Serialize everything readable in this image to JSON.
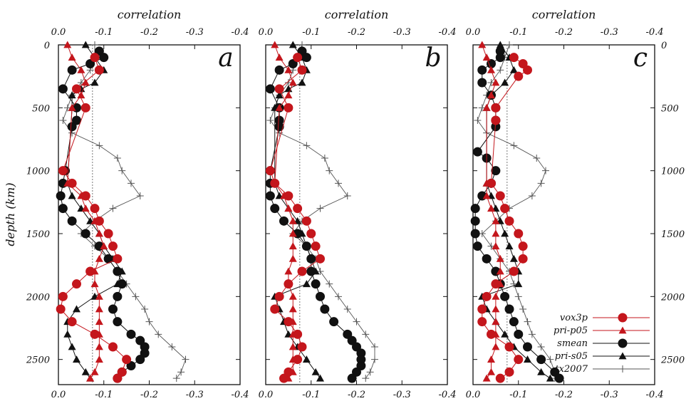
{
  "figure": {
    "top_axis_label": "correlation",
    "y_axis_label": "depth (km)",
    "x_tick_labels": [
      "0",
      "0.0",
      "-0.1",
      "-0.2",
      "-0.3",
      "-0.4"
    ],
    "y_tick_labels": [
      "0",
      "500",
      "1000",
      "1500",
      "2000",
      "2500"
    ],
    "legend": [
      {
        "label": "vox3p",
        "color": "#c4161c",
        "marker": "circle"
      },
      {
        "label": "pri-p05",
        "color": "#c4161c",
        "marker": "triangle"
      },
      {
        "label": "smean",
        "color": "#111111",
        "marker": "circle"
      },
      {
        "label": "pri-s05",
        "color": "#111111",
        "marker": "triangle"
      },
      {
        "label": "tx2007",
        "color": "#555555",
        "marker": "plus"
      }
    ]
  },
  "chart_data": [
    {
      "type": "line",
      "panel": "a",
      "x_label": "correlation",
      "y_label": "depth (km)",
      "xlim": [
        0.0,
        -0.4
      ],
      "ylim": [
        0,
        2700
      ],
      "reference_line_x": -0.075,
      "series": [
        {
          "name": "vox3p",
          "depth": [
            100,
            200,
            350,
            500,
            1000,
            1100,
            1200,
            1300,
            1400,
            1500,
            1600,
            1700,
            1800,
            1900,
            2000,
            2100,
            2200,
            2300,
            2400,
            2500,
            2600,
            2650
          ],
          "value": [
            -0.08,
            -0.09,
            -0.04,
            -0.06,
            -0.01,
            -0.03,
            -0.06,
            -0.08,
            -0.09,
            -0.11,
            -0.12,
            -0.13,
            -0.07,
            -0.04,
            -0.01,
            -0.005,
            -0.03,
            -0.08,
            -0.12,
            -0.15,
            -0.14,
            -0.13
          ]
        },
        {
          "name": "pri-p05",
          "depth": [
            0,
            100,
            200,
            300,
            400,
            500,
            1100,
            1200,
            1300,
            1400,
            1500,
            1600,
            1700,
            1800,
            1900,
            2000,
            2100,
            2200,
            2300,
            2400,
            2500,
            2600,
            2650
          ],
          "value": [
            -0.02,
            -0.03,
            -0.05,
            -0.06,
            -0.05,
            -0.03,
            -0.02,
            -0.05,
            -0.06,
            -0.08,
            -0.09,
            -0.1,
            -0.09,
            -0.08,
            -0.08,
            -0.09,
            -0.09,
            -0.09,
            -0.09,
            -0.09,
            -0.09,
            -0.08,
            -0.07
          ]
        },
        {
          "name": "smean",
          "depth": [
            50,
            100,
            150,
            200,
            350,
            500,
            600,
            650,
            1000,
            1100,
            1200,
            1300,
            1400,
            1500,
            1600,
            1700,
            1800,
            1900,
            2000,
            2100,
            2200,
            2300,
            2350,
            2400,
            2450,
            2500,
            2550,
            2600,
            2650
          ],
          "value": [
            -0.09,
            -0.1,
            -0.07,
            -0.03,
            -0.01,
            -0.04,
            -0.04,
            -0.03,
            -0.015,
            -0.01,
            -0.005,
            -0.01,
            -0.03,
            -0.06,
            -0.09,
            -0.11,
            -0.13,
            -0.14,
            -0.13,
            -0.12,
            -0.13,
            -0.16,
            -0.18,
            -0.19,
            -0.19,
            -0.18,
            -0.16,
            -0.14,
            -0.13
          ]
        },
        {
          "name": "pri-s05",
          "depth": [
            0,
            100,
            200,
            300,
            350,
            400,
            500,
            1100,
            1200,
            1300,
            1400,
            1500,
            1600,
            1700,
            1800,
            1900,
            2000,
            2100,
            2200,
            2300,
            2400,
            2500,
            2600,
            2650
          ],
          "value": [
            -0.06,
            -0.08,
            -0.1,
            -0.08,
            -0.05,
            -0.03,
            -0.03,
            -0.02,
            -0.03,
            -0.05,
            -0.07,
            -0.09,
            -0.1,
            -0.12,
            -0.14,
            -0.13,
            -0.08,
            -0.04,
            -0.02,
            -0.02,
            -0.03,
            -0.04,
            -0.06,
            -0.07
          ]
        },
        {
          "name": "tx2007",
          "depth": [
            0,
            100,
            200,
            300,
            400,
            500,
            600,
            700,
            800,
            900,
            1000,
            1100,
            1200,
            1300,
            1400,
            1500,
            1600,
            1700,
            1800,
            1900,
            2000,
            2100,
            2200,
            2300,
            2400,
            2500,
            2600,
            2650
          ],
          "value": [
            -0.08,
            -0.08,
            -0.07,
            -0.05,
            -0.03,
            -0.02,
            -0.01,
            -0.03,
            -0.09,
            -0.13,
            -0.14,
            -0.16,
            -0.18,
            -0.12,
            -0.08,
            -0.05,
            -0.08,
            -0.11,
            -0.13,
            -0.15,
            -0.17,
            -0.19,
            -0.2,
            -0.22,
            -0.25,
            -0.28,
            -0.27,
            -0.26
          ]
        }
      ]
    },
    {
      "type": "line",
      "panel": "b",
      "x_label": "correlation",
      "y_label": "depth (km)",
      "xlim": [
        0.0,
        -0.4
      ],
      "ylim": [
        0,
        2700
      ],
      "reference_line_x": -0.075,
      "series": [
        {
          "name": "vox3p",
          "depth": [
            100,
            200,
            350,
            500,
            1000,
            1100,
            1200,
            1300,
            1400,
            1500,
            1600,
            1700,
            1800,
            1900,
            2000,
            2100,
            2200,
            2300,
            2400,
            2500,
            2600,
            2650
          ],
          "value": [
            -0.07,
            -0.08,
            -0.03,
            -0.05,
            -0.01,
            -0.02,
            -0.05,
            -0.07,
            -0.09,
            -0.1,
            -0.11,
            -0.12,
            -0.08,
            -0.05,
            -0.03,
            -0.02,
            -0.05,
            -0.07,
            -0.08,
            -0.07,
            -0.05,
            -0.04
          ]
        },
        {
          "name": "pri-p05",
          "depth": [
            0,
            100,
            200,
            300,
            400,
            500,
            1100,
            1200,
            1300,
            1400,
            1500,
            1600,
            1700,
            1800,
            1900,
            2000,
            2100,
            2200,
            2300,
            2400,
            2500,
            2600,
            2650
          ],
          "value": [
            -0.02,
            -0.03,
            -0.05,
            -0.06,
            -0.05,
            -0.03,
            -0.02,
            -0.04,
            -0.05,
            -0.06,
            -0.06,
            -0.06,
            -0.06,
            -0.05,
            -0.05,
            -0.06,
            -0.06,
            -0.06,
            -0.06,
            -0.06,
            -0.06,
            -0.06,
            -0.05
          ]
        },
        {
          "name": "smean",
          "depth": [
            50,
            100,
            150,
            200,
            350,
            500,
            600,
            650,
            1000,
            1100,
            1200,
            1300,
            1400,
            1500,
            1600,
            1700,
            1800,
            1900,
            2000,
            2100,
            2200,
            2300,
            2350,
            2400,
            2450,
            2500,
            2550,
            2600,
            2650
          ],
          "value": [
            -0.08,
            -0.09,
            -0.06,
            -0.03,
            -0.01,
            -0.03,
            -0.03,
            -0.03,
            -0.01,
            -0.01,
            -0.01,
            -0.02,
            -0.04,
            -0.07,
            -0.09,
            -0.1,
            -0.1,
            -0.11,
            -0.12,
            -0.13,
            -0.15,
            -0.18,
            -0.19,
            -0.2,
            -0.21,
            -0.21,
            -0.21,
            -0.2,
            -0.19
          ]
        },
        {
          "name": "pri-s05",
          "depth": [
            0,
            100,
            200,
            300,
            350,
            400,
            500,
            1100,
            1200,
            1300,
            1400,
            1500,
            1600,
            1700,
            1800,
            1900,
            2000,
            2100,
            2200,
            2300,
            2400,
            2500,
            2600,
            2650
          ],
          "value": [
            -0.06,
            -0.08,
            -0.09,
            -0.08,
            -0.05,
            -0.03,
            -0.02,
            -0.02,
            -0.03,
            -0.05,
            -0.07,
            -0.08,
            -0.09,
            -0.1,
            -0.11,
            -0.09,
            -0.02,
            -0.03,
            -0.04,
            -0.05,
            -0.07,
            -0.09,
            -0.11,
            -0.12
          ]
        },
        {
          "name": "tx2007",
          "depth": [
            0,
            100,
            200,
            300,
            400,
            500,
            600,
            700,
            800,
            900,
            1000,
            1100,
            1200,
            1300,
            1400,
            1500,
            1600,
            1700,
            1800,
            1900,
            2000,
            2100,
            2200,
            2300,
            2400,
            2500,
            2600,
            2650
          ],
          "value": [
            -0.08,
            -0.07,
            -0.06,
            -0.05,
            -0.03,
            -0.02,
            -0.01,
            -0.03,
            -0.09,
            -0.13,
            -0.14,
            -0.16,
            -0.18,
            -0.12,
            -0.08,
            -0.06,
            -0.09,
            -0.11,
            -0.12,
            -0.14,
            -0.16,
            -0.18,
            -0.2,
            -0.22,
            -0.24,
            -0.24,
            -0.23,
            -0.22
          ]
        }
      ]
    },
    {
      "type": "line",
      "panel": "c",
      "x_label": "correlation",
      "y_label": "depth (km)",
      "xlim": [
        0.0,
        -0.4
      ],
      "ylim": [
        0,
        2700
      ],
      "reference_line_x": -0.075,
      "series": [
        {
          "name": "vox3p",
          "depth": [
            100,
            150,
            200,
            250,
            500,
            600,
            1100,
            1200,
            1300,
            1400,
            1500,
            1600,
            1700,
            1800,
            1900,
            2000,
            2100,
            2200,
            2300,
            2400,
            2500,
            2600,
            2650
          ],
          "value": [
            -0.09,
            -0.11,
            -0.12,
            -0.1,
            -0.05,
            -0.05,
            -0.04,
            -0.06,
            -0.07,
            -0.08,
            -0.1,
            -0.11,
            -0.11,
            -0.09,
            -0.05,
            -0.03,
            -0.02,
            -0.02,
            -0.04,
            -0.08,
            -0.1,
            -0.08,
            -0.06
          ]
        },
        {
          "name": "pri-p05",
          "depth": [
            0,
            100,
            200,
            300,
            400,
            500,
            1100,
            1200,
            1300,
            1400,
            1500,
            1600,
            1700,
            1800,
            1900,
            2000,
            2100,
            2200,
            2300,
            2400,
            2500,
            2600,
            2650
          ],
          "value": [
            -0.02,
            -0.03,
            -0.04,
            -0.05,
            -0.04,
            -0.03,
            -0.03,
            -0.03,
            -0.04,
            -0.05,
            -0.05,
            -0.05,
            -0.06,
            -0.06,
            -0.06,
            -0.05,
            -0.05,
            -0.05,
            -0.05,
            -0.05,
            -0.04,
            -0.04,
            -0.03
          ]
        },
        {
          "name": "smean",
          "depth": [
            50,
            100,
            150,
            200,
            300,
            400,
            500,
            600,
            650,
            850,
            900,
            1000,
            1100,
            1200,
            1300,
            1400,
            1500,
            1600,
            1700,
            1800,
            1900,
            2000,
            2100,
            2200,
            2300,
            2400,
            2500,
            2600,
            2650
          ],
          "value": [
            -0.06,
            -0.06,
            -0.04,
            -0.02,
            -0.02,
            -0.04,
            -0.05,
            -0.05,
            -0.05,
            -0.01,
            -0.03,
            -0.05,
            -0.04,
            -0.02,
            -0.005,
            -0.005,
            -0.005,
            -0.01,
            -0.03,
            -0.05,
            -0.06,
            -0.07,
            -0.08,
            -0.09,
            -0.1,
            -0.12,
            -0.15,
            -0.18,
            -0.19
          ]
        },
        {
          "name": "pri-s05",
          "depth": [
            0,
            100,
            200,
            300,
            400,
            500,
            1100,
            1200,
            1300,
            1400,
            1500,
            1600,
            1700,
            1800,
            1900,
            2000,
            2100,
            2200,
            2300,
            2400,
            2500,
            2600,
            2650
          ],
          "value": [
            -0.06,
            -0.08,
            -0.09,
            -0.07,
            -0.04,
            -0.03,
            -0.03,
            -0.04,
            -0.05,
            -0.06,
            -0.07,
            -0.08,
            -0.09,
            -0.1,
            -0.1,
            -0.02,
            -0.03,
            -0.05,
            -0.07,
            -0.09,
            -0.12,
            -0.15,
            -0.17
          ]
        },
        {
          "name": "tx2007",
          "depth": [
            0,
            100,
            200,
            300,
            400,
            500,
            600,
            700,
            800,
            900,
            1000,
            1100,
            1200,
            1300,
            1400,
            1500,
            1600,
            1700,
            1800,
            1900,
            2000,
            2100,
            2200,
            2300,
            2400,
            2500,
            2600,
            2650
          ],
          "value": [
            -0.08,
            -0.07,
            -0.06,
            -0.04,
            -0.03,
            -0.02,
            -0.01,
            -0.03,
            -0.09,
            -0.14,
            -0.16,
            -0.15,
            -0.13,
            -0.08,
            -0.05,
            -0.02,
            -0.04,
            -0.06,
            -0.08,
            -0.09,
            -0.1,
            -0.11,
            -0.12,
            -0.13,
            -0.15,
            -0.17,
            -0.18,
            -0.18
          ]
        }
      ]
    }
  ]
}
